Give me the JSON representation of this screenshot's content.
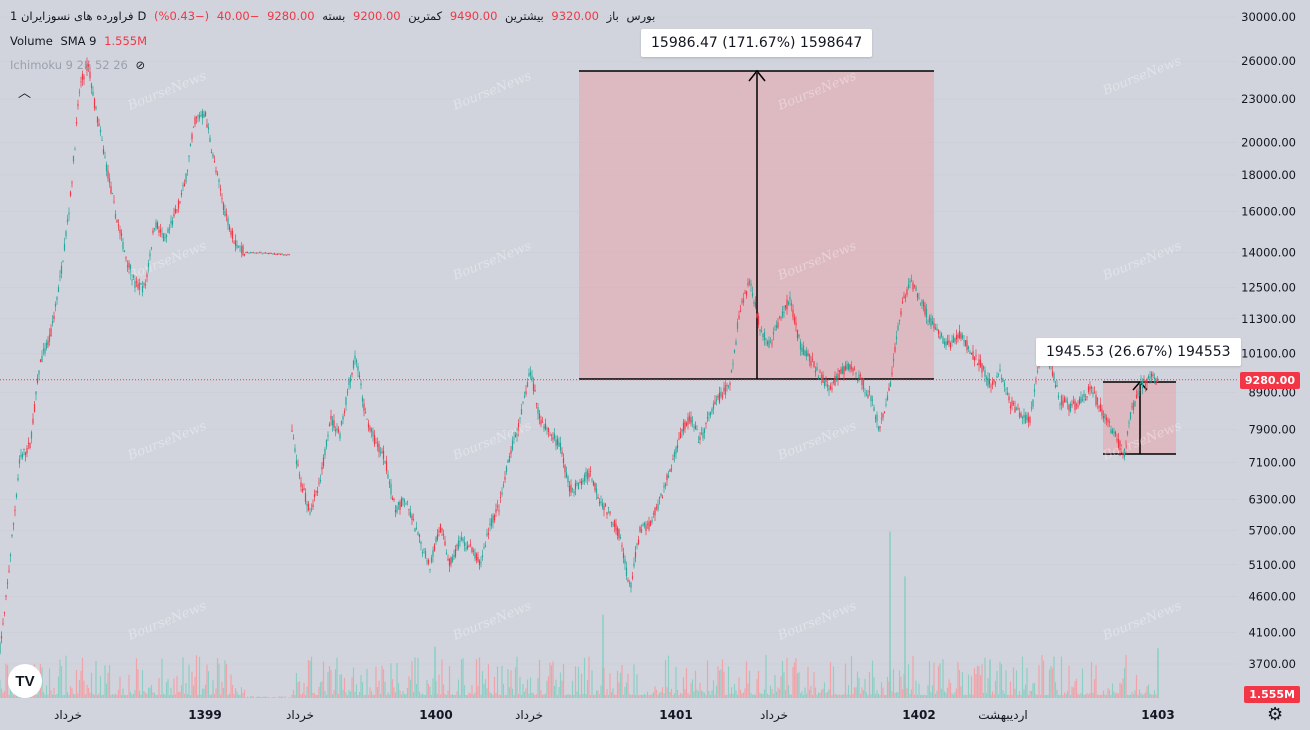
{
  "legend": {
    "symbol": "فراورده های نسوزایران",
    "interval": "1D",
    "exchange": "بورس",
    "open_label": "باز",
    "open": "9320.00",
    "high_label": "بیشترین",
    "high": "9490.00",
    "low_label": "کمترین",
    "low": "9200.00",
    "close_label": "بسته",
    "close": "9280.00",
    "change": "−40.00",
    "change_pct": "(−0.43%)",
    "volume_title": "Volume",
    "volume_ma": "SMA 9",
    "volume_value": "1.555M",
    "ichimoku": "Ichimoku 9 26 52 26"
  },
  "measure_large": {
    "label": "15986.47 (171.67%) 1598647"
  },
  "measure_small": {
    "label": "1945.53 (26.67%) 194553"
  },
  "current_price_tag": "9280.00",
  "volume_tag": "1.555M",
  "watermark": "BourseNews",
  "logo_text": "TV",
  "colors": {
    "up": "#26a69a",
    "down": "#f23645",
    "background": "#d1d4dc",
    "measure_fill": "#f0a0a8"
  },
  "chart_data": {
    "type": "candlestick",
    "y_scale": "log",
    "ylim": [
      3400,
      33000
    ],
    "y_ticks": [
      "30000.00",
      "26000.00",
      "23000.00",
      "20000.00",
      "18000.00",
      "16000.00",
      "14000.00",
      "12500.00",
      "11300.00",
      "10100.00",
      "8900.00",
      "7900.00",
      "7100.00",
      "6300.00",
      "5700.00",
      "5100.00",
      "4600.00",
      "4100.00",
      "3700.00"
    ],
    "x_ticks": [
      "خرداد",
      "1399",
      "خرداد",
      "1400",
      "خرداد",
      "1401",
      "خرداد",
      "1402",
      "اردیبهشت",
      "1403"
    ],
    "series": [
      {
        "name": "price",
        "points": [
          [
            0,
            3900
          ],
          [
            5,
            4400
          ],
          [
            10,
            5200
          ],
          [
            20,
            7200
          ],
          [
            30,
            7500
          ],
          [
            40,
            9800
          ],
          [
            50,
            10600
          ],
          [
            60,
            12800
          ],
          [
            70,
            16500
          ],
          [
            80,
            24000
          ],
          [
            88,
            25800
          ],
          [
            95,
            22500
          ],
          [
            105,
            19000
          ],
          [
            115,
            16000
          ],
          [
            125,
            14000
          ],
          [
            135,
            12600
          ],
          [
            145,
            12500
          ],
          [
            155,
            15500
          ],
          [
            165,
            14500
          ],
          [
            175,
            15800
          ],
          [
            185,
            17500
          ],
          [
            195,
            21500
          ],
          [
            205,
            22000
          ],
          [
            215,
            18500
          ],
          [
            225,
            16000
          ],
          [
            235,
            14500
          ],
          [
            245,
            14000
          ],
          [
            260,
            14000
          ],
          [
            290,
            13900
          ]
        ]
      },
      {
        "name": "price",
        "points": [
          [
            292,
            7800
          ],
          [
            300,
            6700
          ],
          [
            310,
            6100
          ],
          [
            320,
            6600
          ],
          [
            330,
            8200
          ],
          [
            340,
            7800
          ],
          [
            350,
            9300
          ],
          [
            356,
            10000
          ],
          [
            365,
            8300
          ],
          [
            375,
            7600
          ],
          [
            385,
            7200
          ],
          [
            395,
            6100
          ],
          [
            405,
            6300
          ],
          [
            420,
            5500
          ],
          [
            430,
            5100
          ],
          [
            440,
            5800
          ],
          [
            450,
            5100
          ],
          [
            460,
            5500
          ],
          [
            470,
            5400
          ],
          [
            480,
            5100
          ],
          [
            490,
            5800
          ],
          [
            500,
            6200
          ],
          [
            510,
            7300
          ],
          [
            520,
            8100
          ],
          [
            530,
            9600
          ],
          [
            540,
            8200
          ],
          [
            550,
            7800
          ],
          [
            560,
            7500
          ],
          [
            570,
            6500
          ],
          [
            580,
            6600
          ],
          [
            590,
            6900
          ],
          [
            600,
            6300
          ],
          [
            610,
            6000
          ],
          [
            620,
            5600
          ],
          [
            630,
            4700
          ],
          [
            640,
            5700
          ],
          [
            650,
            5800
          ],
          [
            660,
            6300
          ],
          [
            670,
            6900
          ],
          [
            680,
            7800
          ],
          [
            690,
            8200
          ],
          [
            700,
            7600
          ],
          [
            710,
            8300
          ],
          [
            720,
            8800
          ],
          [
            730,
            9100
          ],
          [
            740,
            11700
          ],
          [
            750,
            12800
          ],
          [
            760,
            11000
          ],
          [
            770,
            10400
          ],
          [
            780,
            11300
          ],
          [
            790,
            12100
          ],
          [
            800,
            10400
          ],
          [
            810,
            9900
          ],
          [
            820,
            9400
          ],
          [
            830,
            9000
          ],
          [
            840,
            9500
          ],
          [
            850,
            9700
          ],
          [
            860,
            9300
          ],
          [
            870,
            8800
          ],
          [
            880,
            7900
          ],
          [
            890,
            9100
          ],
          [
            900,
            11500
          ],
          [
            910,
            12800
          ],
          [
            920,
            12100
          ],
          [
            930,
            11200
          ],
          [
            940,
            10700
          ],
          [
            950,
            10400
          ],
          [
            960,
            10800
          ],
          [
            970,
            10200
          ],
          [
            980,
            9800
          ],
          [
            990,
            9100
          ],
          [
            1000,
            9500
          ],
          [
            1010,
            8600
          ],
          [
            1020,
            8300
          ],
          [
            1030,
            8100
          ],
          [
            1040,
            10100
          ],
          [
            1050,
            9800
          ],
          [
            1060,
            8700
          ],
          [
            1070,
            8500
          ],
          [
            1080,
            8600
          ],
          [
            1090,
            9000
          ],
          [
            1100,
            8500
          ],
          [
            1110,
            8000
          ],
          [
            1120,
            7500
          ],
          [
            1125,
            7300
          ],
          [
            1130,
            8200
          ],
          [
            1140,
            9100
          ],
          [
            1150,
            9320
          ],
          [
            1158,
            9280
          ]
        ]
      }
    ],
    "volume_markers": [
      [
        890,
        5.2
      ],
      [
        905,
        3.8
      ],
      [
        603,
        2.6
      ],
      [
        435,
        1.6
      ],
      [
        990,
        1.2
      ],
      [
        1158,
        1.555
      ]
    ]
  }
}
